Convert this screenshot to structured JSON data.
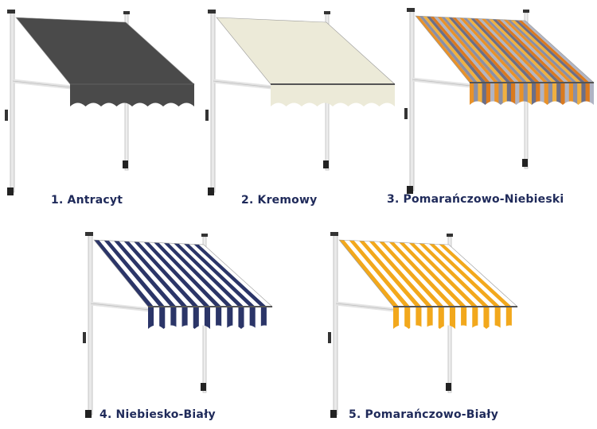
{
  "items": [
    {
      "caption": "1. Antracyt",
      "fabric": "solid",
      "colors": [
        "#4a4a4a"
      ]
    },
    {
      "caption": "2. Kremowy",
      "fabric": "solid",
      "colors": [
        "#ecead8"
      ]
    },
    {
      "caption": "3. Pomarańczowo-Niebieski",
      "fabric": "multistripe",
      "colors": [
        "#e8922a",
        "#8a8fa6",
        "#f0b040",
        "#6a6e88",
        "#d97a20",
        "#b0b4c4"
      ]
    },
    {
      "caption": "4. Niebiesko-Biały",
      "fabric": "stripe",
      "colors": [
        "#2b3568",
        "#ffffff"
      ]
    },
    {
      "caption": "5. Pomarańczowo-Biały",
      "fabric": "stripe",
      "colors": [
        "#f2a81c",
        "#ffffff"
      ]
    }
  ]
}
